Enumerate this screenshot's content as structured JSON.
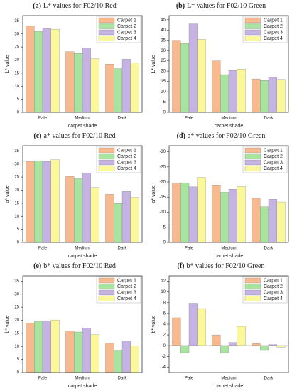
{
  "chart_data": [
    {
      "type": "bar",
      "panel_label": "(a)",
      "title": "L* values for F02/10 Red",
      "xlabel": "carpet shade",
      "ylabel": "L* value",
      "categories": [
        "Pale",
        "Medium",
        "Dark"
      ],
      "ylim": [
        0,
        37
      ],
      "yticks": [
        0,
        5,
        10,
        15,
        20,
        25,
        30,
        35
      ],
      "legend": "upper right",
      "series": [
        {
          "name": "Carpet 1",
          "color": "#f9b98f",
          "values": [
            33.1,
            23.2,
            18.4
          ]
        },
        {
          "name": "Carpet 2",
          "color": "#a8e3a0",
          "values": [
            31.0,
            22.5,
            16.7
          ]
        },
        {
          "name": "Carpet 3",
          "color": "#c5b3e3",
          "values": [
            32.0,
            24.7,
            20.3
          ]
        },
        {
          "name": "Carpet 4",
          "color": "#fbf89a",
          "values": [
            31.8,
            20.5,
            19.0
          ]
        }
      ]
    },
    {
      "type": "bar",
      "panel_label": "(b)",
      "title": "L* values for F02/10 Green",
      "xlabel": "carpet shade",
      "ylabel": "L* value",
      "categories": [
        "Pale",
        "Medium",
        "Dark"
      ],
      "ylim": [
        0,
        47
      ],
      "yticks": [
        0,
        5,
        10,
        15,
        20,
        25,
        30,
        35,
        40,
        45
      ],
      "legend": "upper right",
      "series": [
        {
          "name": "Carpet 1",
          "color": "#f9b98f",
          "values": [
            35.0,
            25.0,
            16.2
          ]
        },
        {
          "name": "Carpet 2",
          "color": "#a8e3a0",
          "values": [
            33.5,
            18.3,
            15.5
          ]
        },
        {
          "name": "Carpet 3",
          "color": "#c5b3e3",
          "values": [
            43.0,
            20.3,
            16.8
          ]
        },
        {
          "name": "Carpet 4",
          "color": "#fbf89a",
          "values": [
            35.5,
            21.0,
            16.0
          ]
        }
      ]
    },
    {
      "type": "bar",
      "panel_label": "(c)",
      "title": "a* values for F02/10 Red",
      "xlabel": "carpet shade",
      "ylabel": "a* value",
      "categories": [
        "Pale",
        "Medium",
        "Dark"
      ],
      "ylim": [
        0,
        37
      ],
      "yticks": [
        0,
        5,
        10,
        15,
        20,
        25,
        30,
        35
      ],
      "legend": "upper right",
      "series": [
        {
          "name": "Carpet 1",
          "color": "#f9b98f",
          "values": [
            31.0,
            25.2,
            18.4
          ]
        },
        {
          "name": "Carpet 2",
          "color": "#a8e3a0",
          "values": [
            31.2,
            24.5,
            14.9
          ]
        },
        {
          "name": "Carpet 3",
          "color": "#c5b3e3",
          "values": [
            31.0,
            26.6,
            19.5
          ]
        },
        {
          "name": "Carpet 4",
          "color": "#fbf89a",
          "values": [
            31.6,
            21.0,
            17.2
          ]
        }
      ]
    },
    {
      "type": "bar",
      "panel_label": "(d)",
      "title": "a* values for F02/10 Green",
      "xlabel": "carpet shade",
      "ylabel": "a* value",
      "categories": [
        "Pale",
        "Medium",
        "Dark"
      ],
      "ylim": [
        0,
        -32
      ],
      "yticks": [
        0,
        -5,
        -10,
        -15,
        -20,
        -25,
        -30
      ],
      "legend": "upper right",
      "series": [
        {
          "name": "Carpet 1",
          "color": "#f9b98f",
          "values": [
            -19.6,
            -19.0,
            -14.6
          ]
        },
        {
          "name": "Carpet 2",
          "color": "#a8e3a0",
          "values": [
            -19.7,
            -16.6,
            -11.8
          ]
        },
        {
          "name": "Carpet 3",
          "color": "#c5b3e3",
          "values": [
            -18.4,
            -17.6,
            -14.3
          ]
        },
        {
          "name": "Carpet 4",
          "color": "#fbf89a",
          "values": [
            -21.5,
            -18.5,
            -13.4
          ]
        }
      ]
    },
    {
      "type": "bar",
      "panel_label": "(e)",
      "title": "b* values for F02/10 Red",
      "xlabel": "carpet shade",
      "ylabel": "b* value",
      "categories": [
        "Pale",
        "Medium",
        "Dark"
      ],
      "ylim": [
        0,
        37
      ],
      "yticks": [
        0,
        5,
        10,
        15,
        20,
        25,
        30,
        35
      ],
      "legend": "upper right",
      "series": [
        {
          "name": "Carpet 1",
          "color": "#f9b98f",
          "values": [
            19.0,
            15.9,
            11.3
          ]
        },
        {
          "name": "Carpet 2",
          "color": "#a8e3a0",
          "values": [
            19.6,
            15.5,
            8.5
          ]
        },
        {
          "name": "Carpet 3",
          "color": "#c5b3e3",
          "values": [
            19.8,
            17.1,
            12.0
          ]
        },
        {
          "name": "Carpet 4",
          "color": "#fbf89a",
          "values": [
            20.1,
            14.5,
            10.3
          ]
        }
      ]
    },
    {
      "type": "bar",
      "panel_label": "(f)",
      "title": "b* values for F02/10 Green",
      "xlabel": "carpet shade",
      "ylabel": "b* value",
      "categories": [
        "Pale",
        "Medium",
        "Dark"
      ],
      "ylim": [
        -5,
        13
      ],
      "yticks": [
        -4,
        -2,
        0,
        2,
        4,
        6,
        8,
        10,
        12
      ],
      "legend": "upper right",
      "series": [
        {
          "name": "Carpet 1",
          "color": "#f9b98f",
          "values": [
            5.2,
            2.0,
            0.4
          ]
        },
        {
          "name": "Carpet 2",
          "color": "#a8e3a0",
          "values": [
            -1.3,
            -1.3,
            -0.9
          ]
        },
        {
          "name": "Carpet 3",
          "color": "#c5b3e3",
          "values": [
            7.9,
            0.6,
            0.2
          ]
        },
        {
          "name": "Carpet 4",
          "color": "#fbf89a",
          "values": [
            6.9,
            3.6,
            -0.3
          ]
        }
      ]
    }
  ]
}
